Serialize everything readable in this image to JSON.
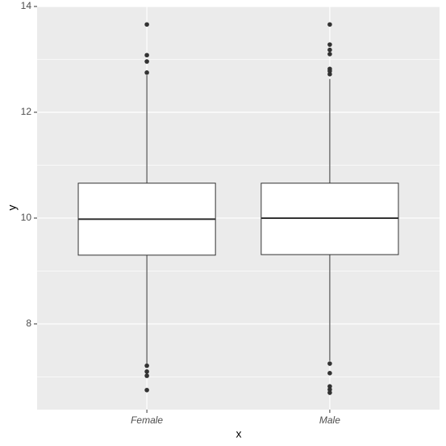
{
  "chart_data": {
    "type": "box",
    "x_label": "x",
    "y_label": "y",
    "categories": [
      "Female",
      "Male"
    ],
    "boxes": [
      {
        "whisker_low": 7.25,
        "q1": 9.3,
        "median": 9.98,
        "q3": 10.66,
        "whisker_high": 12.7,
        "outliers": [
          13.66,
          13.08,
          12.96,
          12.75,
          7.21,
          7.1,
          7.02,
          6.75
        ]
      },
      {
        "whisker_low": 7.3,
        "q1": 9.31,
        "median": 10.0,
        "q3": 10.66,
        "whisker_high": 12.63,
        "outliers": [
          13.66,
          13.28,
          13.18,
          13.1,
          12.82,
          12.78,
          12.72,
          7.25,
          7.07,
          6.82,
          6.76,
          6.7
        ]
      }
    ],
    "ylim": [
      6.38,
      14.0
    ],
    "yticks": [
      8,
      10,
      12,
      14
    ],
    "minor_yticks": [
      7,
      9,
      11,
      13
    ],
    "grid": true,
    "panel_color": "#ebebeb",
    "box_fill": "#ffffff",
    "line_color": "#333333"
  }
}
